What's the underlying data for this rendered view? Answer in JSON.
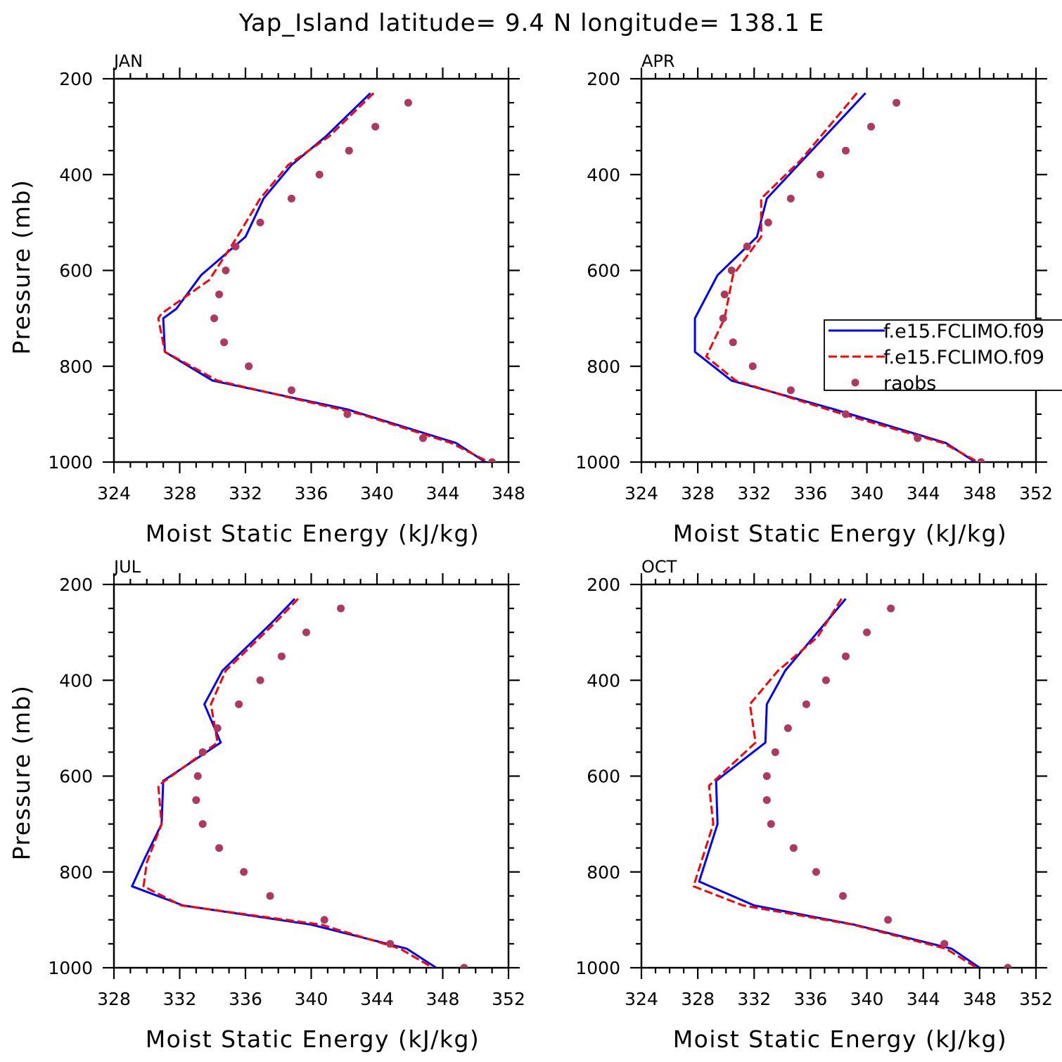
{
  "title": "Yap_Island  latitude= 9.4 N longitude= 138.1 E",
  "colors": {
    "model1": "#0000ff",
    "model2": "#ff0000",
    "raobs": "#b0385e",
    "axis": "#000000"
  },
  "legend": {
    "entries": [
      {
        "label": "f.e15.FCLIMO.f09",
        "style": "solid-blue"
      },
      {
        "label": "f.e15.FCLIMO.f09",
        "style": "dashed-red"
      },
      {
        "label": "raobs",
        "style": "dots"
      }
    ]
  },
  "chart_data": [
    {
      "type": "line",
      "panel": "JAN",
      "xlabel": "Moist Static Energy (kJ/kg)",
      "ylabel": "Pressure (mb)",
      "xlim": [
        324,
        348
      ],
      "ylim": [
        1000,
        200
      ],
      "y_scale": "linear-inverted",
      "xticks": [
        324,
        328,
        332,
        336,
        340,
        344,
        348
      ],
      "yticks": [
        200,
        400,
        600,
        800,
        1000
      ],
      "series": [
        {
          "name": "f.e15.FCLIMO.f09",
          "style": "solid-blue",
          "p": [
            230,
            320,
            380,
            450,
            530,
            610,
            680,
            700,
            770,
            830,
            890,
            960,
            1000
          ],
          "mse": [
            339.6,
            336.9,
            334.8,
            333.1,
            332.0,
            329.3,
            327.8,
            327.0,
            327.1,
            330.0,
            338.2,
            344.8,
            346.6
          ]
        },
        {
          "name": "f.e15.FCLIMO.f09",
          "style": "dashed-red",
          "p": [
            230,
            320,
            380,
            450,
            530,
            620,
            690,
            700,
            770,
            830,
            900,
            960,
            1000
          ],
          "mse": [
            339.8,
            337.1,
            334.6,
            332.9,
            331.5,
            329.8,
            326.9,
            326.7,
            327.1,
            330.3,
            339.0,
            344.5,
            346.8
          ]
        },
        {
          "name": "raobs",
          "style": "dots",
          "p": [
            250,
            300,
            350,
            400,
            450,
            500,
            550,
            600,
            650,
            700,
            750,
            800,
            850,
            900,
            950,
            1000
          ],
          "mse": [
            341.9,
            339.9,
            338.3,
            336.5,
            334.8,
            332.9,
            331.4,
            330.8,
            330.4,
            330.1,
            330.7,
            332.2,
            334.8,
            338.2,
            342.8,
            347.0
          ]
        }
      ]
    },
    {
      "type": "line",
      "panel": "APR",
      "xlabel": "Moist Static Energy (kJ/kg)",
      "ylabel": "",
      "xlim": [
        324,
        352
      ],
      "ylim": [
        1000,
        200
      ],
      "y_scale": "linear-inverted",
      "xticks": [
        324,
        328,
        332,
        336,
        340,
        344,
        348,
        352
      ],
      "yticks": [
        200,
        400,
        600,
        800,
        1000
      ],
      "series": [
        {
          "name": "f.e15.FCLIMO.f09",
          "style": "solid-blue",
          "p": [
            230,
            450,
            530,
            610,
            700,
            770,
            830,
            890,
            960,
            1000
          ],
          "mse": [
            339.9,
            332.9,
            332.2,
            329.4,
            327.8,
            327.8,
            330.4,
            337.7,
            345.6,
            347.7
          ]
        },
        {
          "name": "f.e15.FCLIMO.f09",
          "style": "dashed-red",
          "p": [
            230,
            370,
            450,
            530,
            610,
            700,
            780,
            830,
            900,
            960,
            1000
          ],
          "mse": [
            339.3,
            335.3,
            332.5,
            332.5,
            330.5,
            329.9,
            328.6,
            330.7,
            338.3,
            345.4,
            347.9
          ]
        },
        {
          "name": "raobs",
          "style": "dots",
          "p": [
            250,
            300,
            350,
            400,
            450,
            500,
            550,
            600,
            650,
            700,
            750,
            800,
            850,
            900,
            950,
            1000
          ],
          "mse": [
            342.1,
            340.3,
            338.5,
            336.7,
            334.6,
            333.0,
            331.5,
            330.4,
            329.9,
            329.8,
            330.5,
            331.9,
            334.6,
            338.5,
            343.6,
            348.1
          ]
        }
      ]
    },
    {
      "type": "line",
      "panel": "JUL",
      "xlabel": "Moist Static Energy (kJ/kg)",
      "ylabel": "Pressure (mb)",
      "xlim": [
        328,
        352
      ],
      "ylim": [
        1000,
        200
      ],
      "y_scale": "linear-inverted",
      "xticks": [
        328,
        332,
        336,
        340,
        344,
        348,
        352
      ],
      "yticks": [
        200,
        400,
        600,
        800,
        1000
      ],
      "series": [
        {
          "name": "f.e15.FCLIMO.f09",
          "style": "solid-blue",
          "p": [
            230,
            280,
            380,
            450,
            530,
            610,
            700,
            770,
            830,
            870,
            910,
            960,
            1000
          ],
          "mse": [
            339.0,
            337.6,
            334.6,
            333.5,
            334.5,
            331.0,
            330.9,
            329.9,
            329.1,
            332.2,
            340.0,
            345.8,
            347.6
          ]
        },
        {
          "name": "f.e15.FCLIMO.f09",
          "style": "dashed-red",
          "p": [
            230,
            280,
            380,
            450,
            530,
            620,
            700,
            780,
            830,
            870,
            910,
            960,
            1000
          ],
          "mse": [
            339.2,
            337.8,
            334.8,
            333.9,
            334.3,
            330.7,
            330.9,
            330.0,
            329.8,
            332.1,
            340.6,
            345.4,
            347.4
          ]
        },
        {
          "name": "raobs",
          "style": "dots",
          "p": [
            250,
            300,
            350,
            400,
            450,
            500,
            550,
            600,
            650,
            700,
            750,
            800,
            850,
            900,
            950,
            1000
          ],
          "mse": [
            341.8,
            339.7,
            338.2,
            336.9,
            335.6,
            334.3,
            333.4,
            333.1,
            333.0,
            333.4,
            334.4,
            335.9,
            337.5,
            340.8,
            344.8,
            349.3
          ]
        }
      ]
    },
    {
      "type": "line",
      "panel": "OCT",
      "xlabel": "Moist Static Energy (kJ/kg)",
      "ylabel": "",
      "xlim": [
        324,
        352
      ],
      "ylim": [
        1000,
        200
      ],
      "y_scale": "linear-inverted",
      "xticks": [
        324,
        328,
        332,
        336,
        340,
        344,
        348,
        352
      ],
      "yticks": [
        200,
        400,
        600,
        800,
        1000
      ],
      "series": [
        {
          "name": "f.e15.FCLIMO.f09",
          "style": "solid-blue",
          "p": [
            230,
            380,
            450,
            530,
            610,
            700,
            820,
            870,
            910,
            960,
            1000
          ],
          "mse": [
            338.5,
            334.2,
            332.9,
            332.8,
            329.3,
            329.4,
            328.1,
            332.0,
            339.1,
            346.0,
            348.0
          ]
        },
        {
          "name": "f.e15.FCLIMO.f09",
          "style": "dashed-red",
          "p": [
            230,
            310,
            380,
            450,
            530,
            620,
            700,
            830,
            870,
            910,
            960,
            1000
          ],
          "mse": [
            338.2,
            336.5,
            333.7,
            331.7,
            332.1,
            328.8,
            329.1,
            327.7,
            331.2,
            339.0,
            345.6,
            347.8
          ]
        },
        {
          "name": "raobs",
          "style": "dots",
          "p": [
            250,
            300,
            350,
            400,
            450,
            500,
            550,
            600,
            650,
            700,
            750,
            800,
            850,
            900,
            950,
            1000
          ],
          "mse": [
            341.7,
            340.0,
            338.5,
            337.1,
            335.7,
            334.4,
            333.5,
            332.9,
            332.9,
            333.2,
            334.8,
            336.4,
            338.3,
            341.5,
            345.5,
            350.0
          ]
        }
      ]
    }
  ]
}
